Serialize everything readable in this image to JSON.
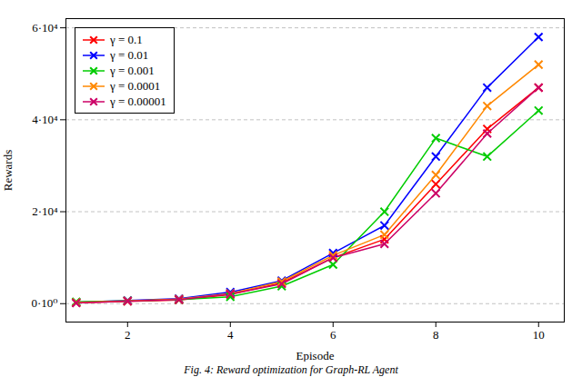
{
  "chart_data": {
    "type": "line",
    "xlabel": "Episode",
    "ylabel": "Rewards",
    "caption": "Fig. 4: Reward optimization for Graph-RL Agent",
    "x": [
      1,
      2,
      3,
      4,
      5,
      6,
      7,
      8,
      9,
      10
    ],
    "series": [
      {
        "name": "γ = 0.1",
        "color": "#ff0000",
        "values": [
          200,
          500,
          800,
          2000,
          4500,
          10000,
          14000,
          26000,
          38000,
          47000
        ]
      },
      {
        "name": "γ = 0.01",
        "color": "#0000ff",
        "values": [
          300,
          700,
          1100,
          2500,
          5000,
          11000,
          17000,
          32000,
          47000,
          58000
        ]
      },
      {
        "name": "γ = 0.001",
        "color": "#00cc00",
        "values": [
          400,
          600,
          900,
          1500,
          3800,
          8500,
          20000,
          36000,
          32000,
          42000
        ]
      },
      {
        "name": "γ = 0.0001",
        "color": "#ff8800",
        "values": [
          250,
          600,
          1000,
          2200,
          4800,
          10500,
          15000,
          28000,
          43000,
          52000
        ]
      },
      {
        "name": "γ = 0.00001",
        "color": "#cc0066",
        "values": [
          150,
          550,
          900,
          2100,
          4300,
          10000,
          13000,
          24000,
          37000,
          47000
        ]
      }
    ],
    "xlim": [
      0.8,
      10.5
    ],
    "ylim": [
      -4000,
      62000
    ],
    "xticks": [
      2,
      4,
      6,
      8,
      10
    ],
    "yticks": [
      {
        "value": 0,
        "label": "0·10⁰"
      },
      {
        "value": 20000,
        "label": "2·10⁴"
      },
      {
        "value": 40000,
        "label": "4·10⁴"
      },
      {
        "value": 60000,
        "label": "6·10⁴"
      }
    ],
    "grid": "y",
    "legend": "upper left",
    "marker": "x"
  }
}
